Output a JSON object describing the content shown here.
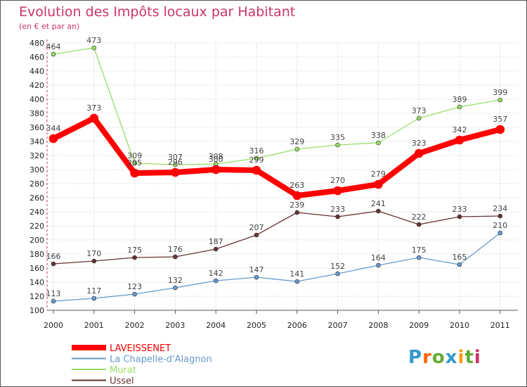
{
  "chart_data": {
    "type": "line",
    "title": "Evolution des Impôts locaux par Habitant",
    "subtitle": "(en € et par an)",
    "xlabel": "",
    "ylabel": "",
    "categories": [
      "2000",
      "2001",
      "2002",
      "2003",
      "2004",
      "2005",
      "2006",
      "2007",
      "2008",
      "2009",
      "2010",
      "2011"
    ],
    "ylim": [
      100,
      480
    ],
    "yticks": [
      100,
      120,
      140,
      160,
      180,
      200,
      220,
      240,
      260,
      280,
      300,
      320,
      340,
      360,
      380,
      400,
      420,
      440,
      460,
      480
    ],
    "grid": true,
    "legend_position": "bottom-left",
    "series": [
      {
        "name": "LAVEISSENET",
        "color": "#ff0000",
        "values": [
          344,
          373,
          295,
          296,
          300,
          299,
          263,
          270,
          279,
          323,
          342,
          357
        ]
      },
      {
        "name": "La Chapelle-d'Alagnon",
        "color": "#6699cc",
        "values": [
          113,
          117,
          123,
          132,
          142,
          147,
          141,
          152,
          164,
          175,
          165,
          210
        ]
      },
      {
        "name": "Murat",
        "color": "#99dd66",
        "values": [
          464,
          473,
          309,
          307,
          308,
          316,
          329,
          335,
          338,
          373,
          389,
          399
        ]
      },
      {
        "name": "Ussel",
        "color": "#663333",
        "values": [
          166,
          170,
          175,
          176,
          187,
          207,
          239,
          233,
          241,
          222,
          233,
          234
        ]
      }
    ]
  },
  "branding": {
    "text": "Proxiti"
  },
  "colors": {
    "title": "#cc3366",
    "grid": "#cccccc",
    "axis": "#555555"
  }
}
